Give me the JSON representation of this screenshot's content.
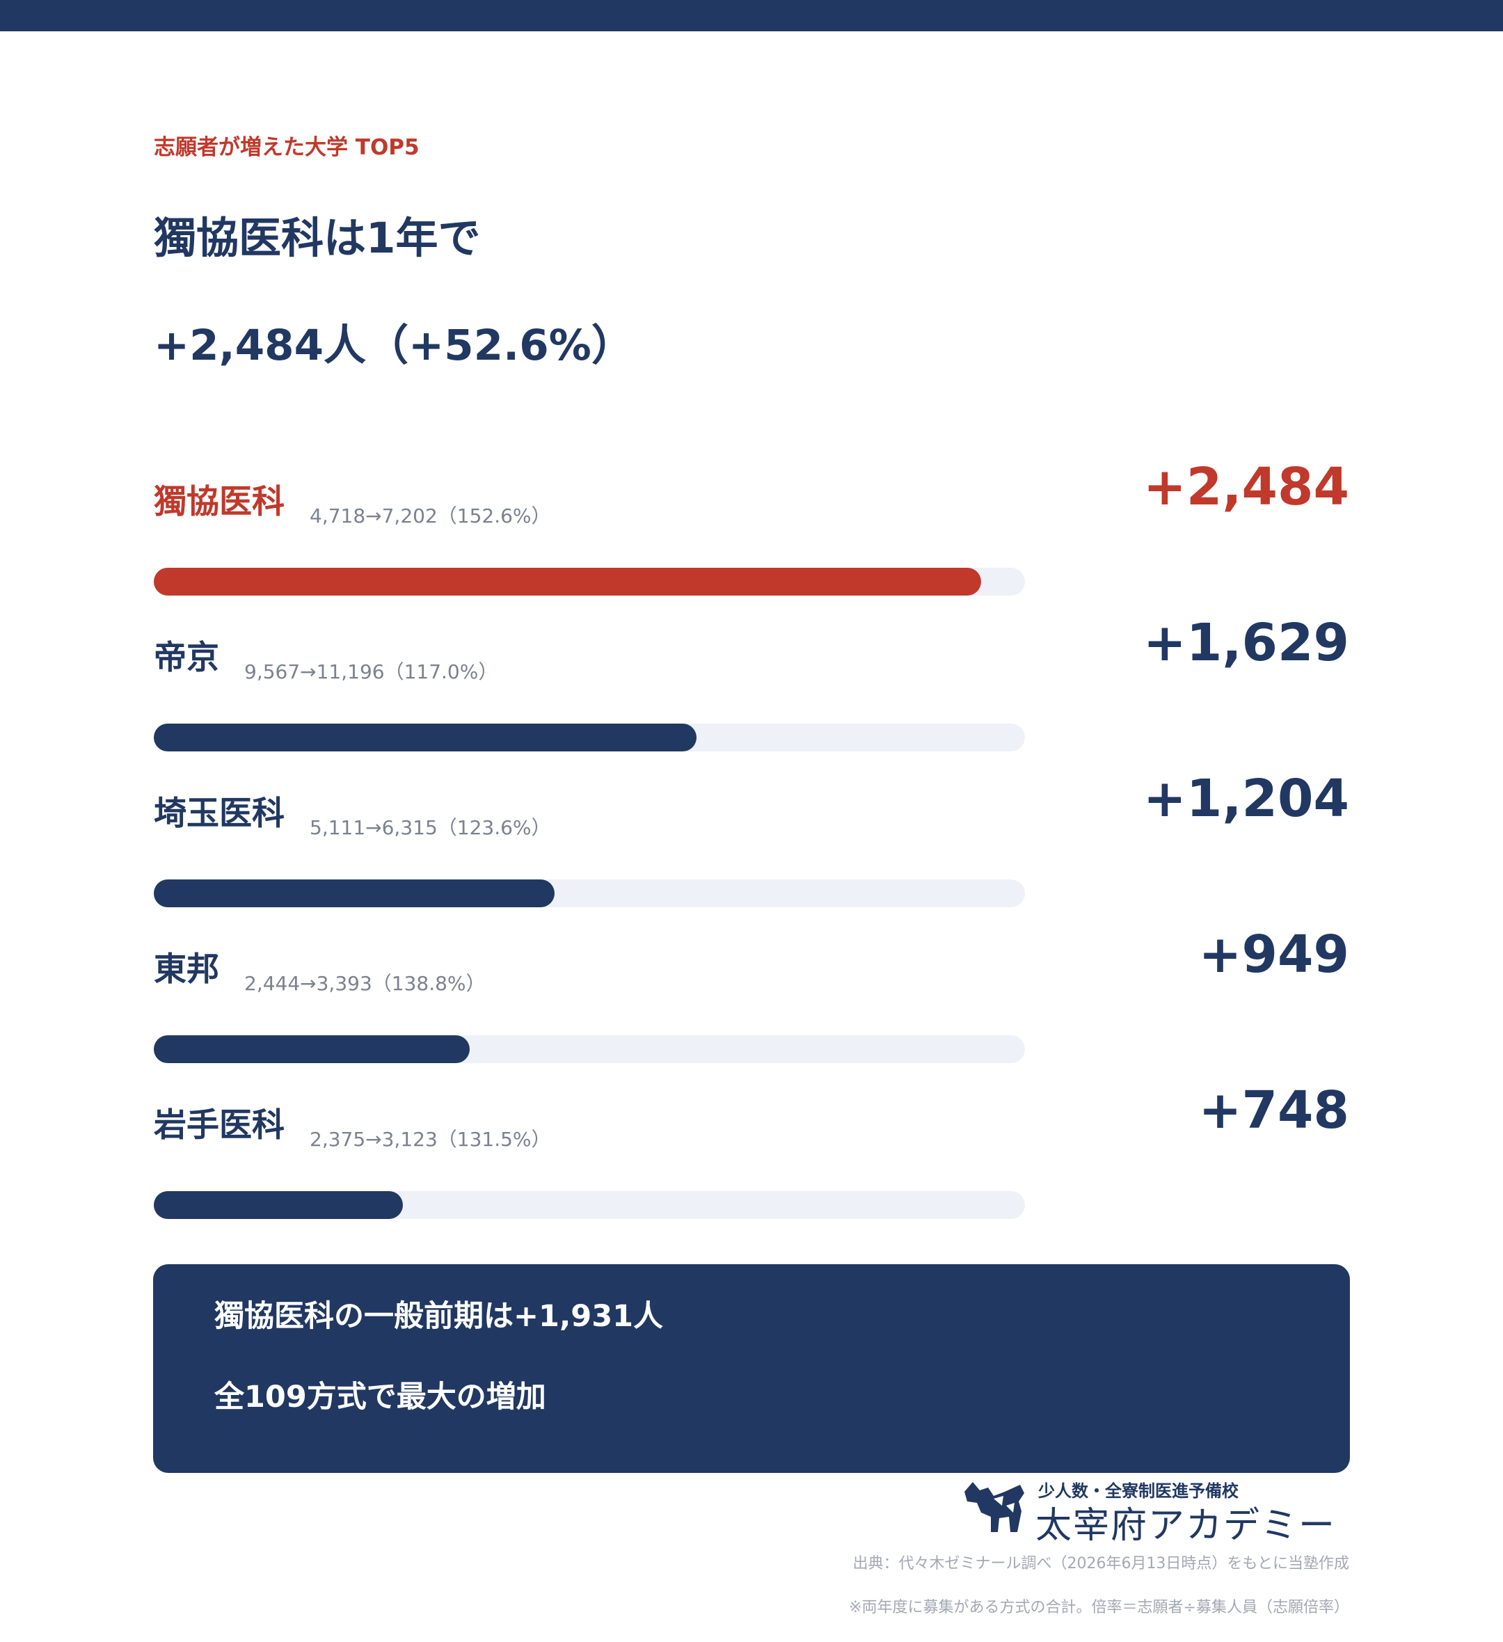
{
  "header": {
    "eyebrow": "志願者が増えた大学 TOP5",
    "headline_line1": "獨協医科は1年で",
    "headline_line2": "+2,484人（+52.6%）"
  },
  "chart_data": {
    "type": "bar",
    "orientation": "horizontal",
    "title": "志願者が増えた大学 TOP5",
    "categories": [
      "獨協医科",
      "帝京",
      "埼玉医科",
      "東邦",
      "岩手医科"
    ],
    "values": [
      2484,
      1629,
      1204,
      949,
      748
    ],
    "value_labels": [
      "+2,484",
      "+1,629",
      "+1,204",
      "+949",
      "+748"
    ],
    "details": [
      "4,718→7,202（152.6%）",
      "9,567→11,196（117.0%）",
      "5,111→6,315（123.6%）",
      "2,444→3,393（138.8%）",
      "2,375→3,123（131.5%）"
    ],
    "xlim": [
      0,
      2616
    ],
    "highlight_index": 0,
    "colors": {
      "highlight": "#c0392b",
      "bar": "#213862",
      "track": "#eef1f7"
    }
  },
  "callout": {
    "line1": "獨協医科の一般前期は+1,931人",
    "line2": "全109方式で最大の増加"
  },
  "logo": {
    "tagline": "少人数・全寮制医進予備校",
    "brand": "太宰府アカデミー",
    "icon": "dog-mascot-icon"
  },
  "footer": {
    "source": "出典：代々木ゼミナール調べ（2026年6月13日時点）をもとに当塾作成",
    "note": "※両年度に募集がある方式の合計。倍率＝志願者÷募集人員（志願倍率）"
  }
}
